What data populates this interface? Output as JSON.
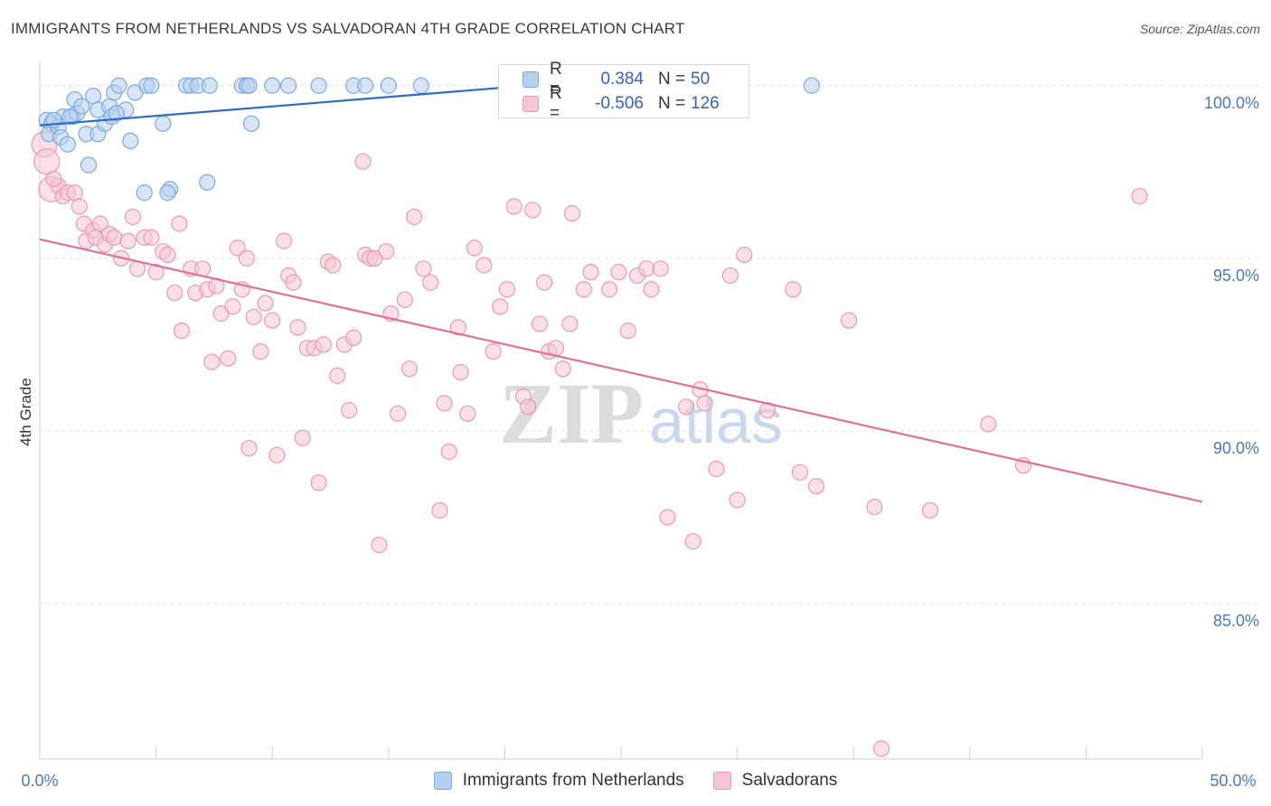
{
  "title": "IMMIGRANTS FROM NETHERLANDS VS SALVADORAN 4TH GRADE CORRELATION CHART",
  "source": "Source: ZipAtlas.com",
  "watermark": {
    "zip": "ZIP",
    "atlas": "atlas"
  },
  "colors": {
    "blue_fill": "#b6d0f0",
    "blue_stroke": "#7aaae0",
    "blue_line": "#2f6cc8",
    "pink_fill": "#f7c6d4",
    "pink_stroke": "#ea9ab4",
    "pink_line": "#e0709a",
    "axis_label": "#4a78c4",
    "grid": "#e2e2e2"
  },
  "legend": {
    "rows": [
      {
        "r_label": "R =",
        "r_value": "0.384",
        "n_label": "N =",
        "n_value": "50"
      },
      {
        "r_label": "R =",
        "r_value": "-0.506",
        "n_label": "N =",
        "n_value": "126"
      }
    ]
  },
  "bottom_legend": [
    "Immigrants from Netherlands",
    "Salvadorans"
  ],
  "chart_data": {
    "type": "scatter",
    "title": "IMMIGRANTS FROM NETHERLANDS VS SALVADORAN 4TH GRADE CORRELATION CHART",
    "xlabel": "",
    "ylabel": "4th Grade",
    "xlim": [
      0,
      50
    ],
    "ylim": [
      80.5,
      100.7
    ],
    "x_tick_labels": {
      "left": "0.0%",
      "right": "50.0%"
    },
    "y_ticks": [
      {
        "value": 100,
        "label": "100.0%"
      },
      {
        "value": 95,
        "label": "95.0%"
      },
      {
        "value": 90,
        "label": "90.0%"
      },
      {
        "value": 85,
        "label": "85.0%"
      }
    ],
    "grid": true,
    "series": [
      {
        "name": "Immigrants from Netherlands",
        "color": "blue",
        "R": 0.384,
        "N": 50,
        "trend": {
          "x0": 0,
          "y0": 98.85,
          "x1": 21.0,
          "y1": 100.0
        },
        "points": [
          [
            0.3,
            99.0
          ],
          [
            0.5,
            98.9
          ],
          [
            0.4,
            98.6
          ],
          [
            0.8,
            98.8
          ],
          [
            1.0,
            99.1
          ],
          [
            0.9,
            98.5
          ],
          [
            1.2,
            98.3
          ],
          [
            1.4,
            99.1
          ],
          [
            1.5,
            99.6
          ],
          [
            1.6,
            99.2
          ],
          [
            1.8,
            99.4
          ],
          [
            2.0,
            98.6
          ],
          [
            2.3,
            99.7
          ],
          [
            2.5,
            99.3
          ],
          [
            2.5,
            98.6
          ],
          [
            2.8,
            98.9
          ],
          [
            3.0,
            99.4
          ],
          [
            3.1,
            99.1
          ],
          [
            3.2,
            99.8
          ],
          [
            3.4,
            100.0
          ],
          [
            3.7,
            99.3
          ],
          [
            3.9,
            98.4
          ],
          [
            4.1,
            99.8
          ],
          [
            4.6,
            100.0
          ],
          [
            4.8,
            100.0
          ],
          [
            5.3,
            98.9
          ],
          [
            5.6,
            97.0
          ],
          [
            6.3,
            100.0
          ],
          [
            6.5,
            100.0
          ],
          [
            6.8,
            100.0
          ],
          [
            7.3,
            100.0
          ],
          [
            8.7,
            100.0
          ],
          [
            8.9,
            100.0
          ],
          [
            9.1,
            98.9
          ],
          [
            10.0,
            100.0
          ],
          [
            10.7,
            100.0
          ],
          [
            13.5,
            100.0
          ],
          [
            15.0,
            100.0
          ],
          [
            16.4,
            100.0
          ],
          [
            33.2,
            100.0
          ],
          [
            2.1,
            97.7
          ],
          [
            4.5,
            96.9
          ],
          [
            5.5,
            96.9
          ],
          [
            7.2,
            97.2
          ],
          [
            1.3,
            99.1
          ],
          [
            0.6,
            99.0
          ],
          [
            3.3,
            99.2
          ],
          [
            9.0,
            100.0
          ],
          [
            12.0,
            100.0
          ],
          [
            14.0,
            100.0
          ]
        ]
      },
      {
        "name": "Salvadorans",
        "color": "pink",
        "R": -0.506,
        "N": 126,
        "trend": {
          "x0": 0,
          "y0": 95.55,
          "x1": 50,
          "y1": 87.95
        },
        "points": [
          [
            0.2,
            98.3
          ],
          [
            0.3,
            97.8
          ],
          [
            0.5,
            97.0
          ],
          [
            0.8,
            97.1
          ],
          [
            1.0,
            96.8
          ],
          [
            1.2,
            96.9
          ],
          [
            1.5,
            96.9
          ],
          [
            1.7,
            96.5
          ],
          [
            1.9,
            96.0
          ],
          [
            2.0,
            95.5
          ],
          [
            2.3,
            95.8
          ],
          [
            2.4,
            95.6
          ],
          [
            2.6,
            96.0
          ],
          [
            2.8,
            95.4
          ],
          [
            3.0,
            95.7
          ],
          [
            3.2,
            95.6
          ],
          [
            3.5,
            95.0
          ],
          [
            3.8,
            95.5
          ],
          [
            4.0,
            96.2
          ],
          [
            4.2,
            94.7
          ],
          [
            4.5,
            95.6
          ],
          [
            4.8,
            95.6
          ],
          [
            5.0,
            94.6
          ],
          [
            5.3,
            95.2
          ],
          [
            5.5,
            95.1
          ],
          [
            5.8,
            94.0
          ],
          [
            6.0,
            96.0
          ],
          [
            6.1,
            92.9
          ],
          [
            6.5,
            94.7
          ],
          [
            6.7,
            94.0
          ],
          [
            7.0,
            94.7
          ],
          [
            7.2,
            94.1
          ],
          [
            7.4,
            92.0
          ],
          [
            7.6,
            94.2
          ],
          [
            7.8,
            93.4
          ],
          [
            8.1,
            92.1
          ],
          [
            8.3,
            93.6
          ],
          [
            8.5,
            95.3
          ],
          [
            8.7,
            94.1
          ],
          [
            8.9,
            95.0
          ],
          [
            9.0,
            89.5
          ],
          [
            9.2,
            93.3
          ],
          [
            9.5,
            92.3
          ],
          [
            9.7,
            93.7
          ],
          [
            10.0,
            93.2
          ],
          [
            10.2,
            89.3
          ],
          [
            10.5,
            95.5
          ],
          [
            10.7,
            94.5
          ],
          [
            10.9,
            94.3
          ],
          [
            11.1,
            93.0
          ],
          [
            11.3,
            89.8
          ],
          [
            11.5,
            92.4
          ],
          [
            11.8,
            92.4
          ],
          [
            12.0,
            88.5
          ],
          [
            12.2,
            92.5
          ],
          [
            12.4,
            94.9
          ],
          [
            12.6,
            94.8
          ],
          [
            12.8,
            91.6
          ],
          [
            13.1,
            92.5
          ],
          [
            13.3,
            90.6
          ],
          [
            13.5,
            92.7
          ],
          [
            13.9,
            97.8
          ],
          [
            14.0,
            95.1
          ],
          [
            14.2,
            95.0
          ],
          [
            14.4,
            95.0
          ],
          [
            14.6,
            86.7
          ],
          [
            14.9,
            95.2
          ],
          [
            15.1,
            93.4
          ],
          [
            15.4,
            90.5
          ],
          [
            15.7,
            93.8
          ],
          [
            15.9,
            91.8
          ],
          [
            16.1,
            96.2
          ],
          [
            16.5,
            94.7
          ],
          [
            16.8,
            94.3
          ],
          [
            17.2,
            87.7
          ],
          [
            17.4,
            90.8
          ],
          [
            17.6,
            89.4
          ],
          [
            18.0,
            93.0
          ],
          [
            18.1,
            91.7
          ],
          [
            18.4,
            90.5
          ],
          [
            18.7,
            95.3
          ],
          [
            19.1,
            94.8
          ],
          [
            19.5,
            92.3
          ],
          [
            19.8,
            93.6
          ],
          [
            20.1,
            94.1
          ],
          [
            20.4,
            96.5
          ],
          [
            20.8,
            91.0
          ],
          [
            21.0,
            90.7
          ],
          [
            21.2,
            96.4
          ],
          [
            21.5,
            93.1
          ],
          [
            21.7,
            94.3
          ],
          [
            21.9,
            92.3
          ],
          [
            22.2,
            92.4
          ],
          [
            22.5,
            91.8
          ],
          [
            22.8,
            93.1
          ],
          [
            22.9,
            96.3
          ],
          [
            23.4,
            94.1
          ],
          [
            23.7,
            94.6
          ],
          [
            24.5,
            94.1
          ],
          [
            24.9,
            94.6
          ],
          [
            25.3,
            92.9
          ],
          [
            25.7,
            94.5
          ],
          [
            26.1,
            94.7
          ],
          [
            26.3,
            94.1
          ],
          [
            26.7,
            94.7
          ],
          [
            27.0,
            87.5
          ],
          [
            27.8,
            90.7
          ],
          [
            28.1,
            86.8
          ],
          [
            28.4,
            91.2
          ],
          [
            28.6,
            90.8
          ],
          [
            29.1,
            88.9
          ],
          [
            29.7,
            94.5
          ],
          [
            30.0,
            88.0
          ],
          [
            30.3,
            95.1
          ],
          [
            31.3,
            90.6
          ],
          [
            32.4,
            94.1
          ],
          [
            32.7,
            88.8
          ],
          [
            33.4,
            88.4
          ],
          [
            34.8,
            93.2
          ],
          [
            35.9,
            87.8
          ],
          [
            36.2,
            80.8
          ],
          [
            38.3,
            87.7
          ],
          [
            40.8,
            90.2
          ],
          [
            42.3,
            89.0
          ],
          [
            47.3,
            96.8
          ],
          [
            0.6,
            97.3
          ]
        ]
      }
    ]
  }
}
